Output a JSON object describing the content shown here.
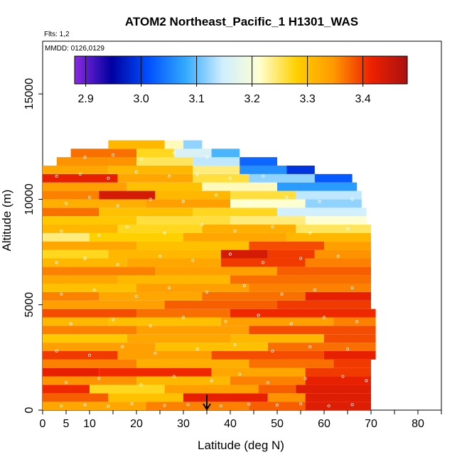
{
  "chart_data": {
    "type": "heatmap",
    "title": "ATOM2 Northeast_Pacific_1 H1301_WAS",
    "annotations": [
      "Flts: 1,2",
      "MMDD: 0126,0129"
    ],
    "xlabel": "Latitude (deg N)",
    "ylabel": "Altitude (m)",
    "xlim": [
      0,
      85
    ],
    "ylim": [
      0,
      17500
    ],
    "x_ticks": [
      0,
      5,
      10,
      20,
      30,
      40,
      50,
      60,
      70,
      80
    ],
    "x_minor_ticks": [
      15,
      25,
      35,
      45,
      55,
      65,
      75,
      85
    ],
    "y_ticks": [
      0,
      5000,
      10000,
      15000
    ],
    "colorbar": {
      "range": [
        2.88,
        3.48
      ],
      "ticks": [
        2.9,
        3.0,
        3.1,
        3.2,
        3.3,
        3.4
      ],
      "tick_labels": [
        "2.9",
        "3.0",
        "3.1",
        "3.2",
        "3.3",
        "3.4"
      ],
      "colors": [
        "#8a2be2",
        "#0000a0",
        "#0050ff",
        "#33aaff",
        "#cfeeff",
        "#ffffd0",
        "#ffd000",
        "#ff9900",
        "#ee2200",
        "#aa1010"
      ]
    },
    "marker": {
      "latitude": 35,
      "altitude": 0,
      "symbol": "down-arrow"
    },
    "profile_outline": [
      [
        0,
        0
      ],
      [
        0,
        2500
      ],
      [
        1,
        4000
      ],
      [
        1.5,
        6500
      ],
      [
        2,
        8500
      ],
      [
        2,
        10000
      ],
      [
        3,
        11500
      ],
      [
        6,
        12200
      ],
      [
        11,
        12700
      ],
      [
        22,
        12800
      ],
      [
        32,
        12300
      ],
      [
        42,
        11700
      ],
      [
        50,
        11500
      ],
      [
        58,
        11000
      ],
      [
        62,
        10600
      ],
      [
        66,
        10300
      ],
      [
        68,
        9800
      ],
      [
        69,
        9000
      ],
      [
        69.5,
        8000
      ],
      [
        70,
        7000
      ],
      [
        70.5,
        5500
      ],
      [
        71,
        4000
      ],
      [
        71,
        2500
      ],
      [
        70,
        1000
      ],
      [
        70,
        0
      ]
    ],
    "bands": [
      {
        "alt": [
          0,
          400
        ],
        "segments": [
          [
            0,
            22,
            3.33
          ],
          [
            22,
            44,
            3.36
          ],
          [
            44,
            56,
            3.38
          ],
          [
            56,
            70,
            3.43
          ]
        ]
      },
      {
        "alt": [
          400,
          800
        ],
        "segments": [
          [
            0,
            14,
            3.38
          ],
          [
            14,
            30,
            3.3
          ],
          [
            30,
            48,
            3.42
          ],
          [
            48,
            56,
            3.35
          ],
          [
            56,
            70,
            3.43
          ]
        ]
      },
      {
        "alt": [
          800,
          1200
        ],
        "segments": [
          [
            0,
            10,
            3.41
          ],
          [
            10,
            26,
            3.27
          ],
          [
            26,
            46,
            3.34
          ],
          [
            46,
            54,
            3.38
          ],
          [
            54,
            70,
            3.43
          ]
        ]
      },
      {
        "alt": [
          1200,
          1600
        ],
        "segments": [
          [
            0,
            20,
            3.35
          ],
          [
            20,
            40,
            3.31
          ],
          [
            40,
            56,
            3.36
          ],
          [
            56,
            70,
            3.42
          ]
        ]
      },
      {
        "alt": [
          1600,
          2000
        ],
        "segments": [
          [
            0,
            12,
            3.42
          ],
          [
            12,
            36,
            3.41
          ],
          [
            36,
            56,
            3.33
          ],
          [
            56,
            70,
            3.4
          ]
        ]
      },
      {
        "alt": [
          2000,
          2400
        ],
        "segments": [
          [
            0,
            20,
            3.36
          ],
          [
            20,
            44,
            3.32
          ],
          [
            44,
            62,
            3.37
          ],
          [
            62,
            70,
            3.4
          ]
        ]
      },
      {
        "alt": [
          2400,
          2800
        ],
        "segments": [
          [
            0,
            16,
            3.4
          ],
          [
            16,
            36,
            3.34
          ],
          [
            36,
            60,
            3.39
          ],
          [
            60,
            71,
            3.42
          ]
        ]
      },
      {
        "alt": [
          2800,
          3200
        ],
        "segments": [
          [
            0,
            24,
            3.34
          ],
          [
            24,
            48,
            3.3
          ],
          [
            48,
            71,
            3.37
          ]
        ]
      },
      {
        "alt": [
          3200,
          3600
        ],
        "segments": [
          [
            0,
            18,
            3.29
          ],
          [
            18,
            40,
            3.33
          ],
          [
            40,
            60,
            3.31
          ],
          [
            60,
            71,
            3.39
          ]
        ]
      },
      {
        "alt": [
          3600,
          4000
        ],
        "segments": [
          [
            0,
            20,
            3.36
          ],
          [
            20,
            44,
            3.34
          ],
          [
            44,
            71,
            3.39
          ]
        ]
      },
      {
        "alt": [
          4000,
          4400
        ],
        "segments": [
          [
            0,
            14,
            3.31
          ],
          [
            14,
            38,
            3.3
          ],
          [
            38,
            62,
            3.34
          ],
          [
            62,
            71,
            3.36
          ]
        ]
      },
      {
        "alt": [
          4400,
          4800
        ],
        "segments": [
          [
            0,
            20,
            3.39
          ],
          [
            20,
            40,
            3.37
          ],
          [
            40,
            71,
            3.41
          ]
        ]
      },
      {
        "alt": [
          4800,
          5200
        ],
        "segments": [
          [
            0,
            26,
            3.34
          ],
          [
            26,
            50,
            3.38
          ],
          [
            50,
            70,
            3.4
          ]
        ]
      },
      {
        "alt": [
          5200,
          5600
        ],
        "segments": [
          [
            0,
            12,
            3.36
          ],
          [
            12,
            34,
            3.33
          ],
          [
            34,
            56,
            3.37
          ],
          [
            56,
            70,
            3.42
          ]
        ]
      },
      {
        "alt": [
          5600,
          6000
        ],
        "segments": [
          [
            0,
            20,
            3.3
          ],
          [
            20,
            44,
            3.34
          ],
          [
            44,
            70,
            3.36
          ]
        ]
      },
      {
        "alt": [
          6000,
          6400
        ],
        "segments": [
          [
            0,
            16,
            3.33
          ],
          [
            16,
            40,
            3.31
          ],
          [
            40,
            70,
            3.37
          ]
        ]
      },
      {
        "alt": [
          6400,
          6800
        ],
        "segments": [
          [
            0,
            24,
            3.36
          ],
          [
            24,
            50,
            3.34
          ],
          [
            50,
            70,
            3.38
          ]
        ]
      },
      {
        "alt": [
          6800,
          7200
        ],
        "segments": [
          [
            0,
            18,
            3.31
          ],
          [
            18,
            38,
            3.33
          ],
          [
            38,
            56,
            3.4
          ],
          [
            56,
            70,
            3.36
          ]
        ]
      },
      {
        "alt": [
          7200,
          7600
        ],
        "segments": [
          [
            0,
            14,
            3.27
          ],
          [
            14,
            38,
            3.31
          ],
          [
            38,
            48,
            3.44
          ],
          [
            48,
            58,
            3.4
          ],
          [
            58,
            70,
            3.35
          ]
        ]
      },
      {
        "alt": [
          7600,
          8000
        ],
        "segments": [
          [
            0,
            20,
            3.33
          ],
          [
            20,
            44,
            3.3
          ],
          [
            44,
            60,
            3.39
          ],
          [
            60,
            70,
            3.34
          ]
        ]
      },
      {
        "alt": [
          8000,
          8400
        ],
        "segments": [
          [
            0,
            10,
            3.24
          ],
          [
            10,
            30,
            3.28
          ],
          [
            30,
            52,
            3.33
          ],
          [
            52,
            70,
            3.31
          ]
        ]
      },
      {
        "alt": [
          8400,
          8800
        ],
        "segments": [
          [
            0,
            16,
            3.31
          ],
          [
            16,
            34,
            3.27
          ],
          [
            34,
            54,
            3.32
          ],
          [
            54,
            70,
            3.25
          ]
        ]
      },
      {
        "alt": [
          8800,
          9200
        ],
        "segments": [
          [
            0,
            20,
            3.29
          ],
          [
            20,
            40,
            3.26
          ],
          [
            40,
            56,
            3.24
          ],
          [
            56,
            69,
            3.21
          ]
        ]
      },
      {
        "alt": [
          9200,
          9600
        ],
        "segments": [
          [
            0,
            12,
            3.37
          ],
          [
            12,
            32,
            3.3
          ],
          [
            32,
            50,
            3.27
          ],
          [
            50,
            69,
            3.15
          ]
        ]
      },
      {
        "alt": [
          9600,
          10000
        ],
        "segments": [
          [
            0,
            22,
            3.32
          ],
          [
            22,
            40,
            3.34
          ],
          [
            40,
            56,
            3.21
          ],
          [
            56,
            68,
            3.12
          ]
        ]
      },
      {
        "alt": [
          10000,
          10400
        ],
        "segments": [
          [
            0,
            12,
            3.36
          ],
          [
            12,
            24,
            3.44
          ],
          [
            24,
            40,
            3.31
          ],
          [
            40,
            54,
            3.26
          ],
          [
            54,
            68,
            3.14
          ]
        ]
      },
      {
        "alt": [
          10400,
          10800
        ],
        "segments": [
          [
            0,
            18,
            3.34
          ],
          [
            18,
            34,
            3.3
          ],
          [
            34,
            50,
            3.22
          ],
          [
            50,
            67,
            3.07
          ]
        ]
      },
      {
        "alt": [
          10800,
          11200
        ],
        "segments": [
          [
            0,
            16,
            3.42
          ],
          [
            16,
            32,
            3.33
          ],
          [
            32,
            44,
            3.26
          ],
          [
            44,
            58,
            3.12
          ],
          [
            58,
            66,
            3.02
          ]
        ]
      },
      {
        "alt": [
          11200,
          11600
        ],
        "segments": [
          [
            0,
            14,
            3.33
          ],
          [
            14,
            32,
            3.31
          ],
          [
            32,
            42,
            3.24
          ],
          [
            42,
            52,
            3.06
          ],
          [
            52,
            58,
            2.99
          ]
        ]
      },
      {
        "alt": [
          11600,
          12000
        ],
        "segments": [
          [
            3,
            20,
            3.35
          ],
          [
            20,
            32,
            3.25
          ],
          [
            32,
            42,
            3.14
          ],
          [
            42,
            50,
            3.03
          ]
        ]
      },
      {
        "alt": [
          12000,
          12400
        ],
        "segments": [
          [
            6,
            20,
            3.37
          ],
          [
            20,
            28,
            3.27
          ],
          [
            28,
            36,
            3.16
          ],
          [
            36,
            42,
            3.09
          ]
        ]
      },
      {
        "alt": [
          12400,
          12800
        ],
        "segments": [
          [
            14,
            26,
            3.31
          ],
          [
            26,
            30,
            3.22
          ],
          [
            30,
            34,
            3.12
          ]
        ]
      }
    ],
    "sample_points": [
      [
        4,
        200
      ],
      [
        9,
        250
      ],
      [
        14,
        180
      ],
      [
        19,
        300
      ],
      [
        26,
        220
      ],
      [
        31,
        260
      ],
      [
        38,
        200
      ],
      [
        44,
        280
      ],
      [
        50,
        240
      ],
      [
        55,
        300
      ],
      [
        61,
        200
      ],
      [
        66,
        260
      ],
      [
        5,
        1300
      ],
      [
        12,
        1500
      ],
      [
        21,
        1200
      ],
      [
        28,
        1600
      ],
      [
        36,
        1400
      ],
      [
        42,
        1700
      ],
      [
        48,
        1300
      ],
      [
        56,
        1500
      ],
      [
        64,
        1600
      ],
      [
        69,
        1400
      ],
      [
        3,
        2800
      ],
      [
        10,
        2600
      ],
      [
        17,
        3000
      ],
      [
        24,
        2700
      ],
      [
        33,
        2900
      ],
      [
        41,
        3100
      ],
      [
        49,
        2800
      ],
      [
        57,
        3000
      ],
      [
        65,
        2900
      ],
      [
        6,
        4100
      ],
      [
        15,
        4300
      ],
      [
        23,
        4000
      ],
      [
        30,
        4400
      ],
      [
        39,
        4200
      ],
      [
        46,
        4500
      ],
      [
        53,
        4100
      ],
      [
        60,
        4400
      ],
      [
        67,
        4200
      ],
      [
        4,
        5500
      ],
      [
        11,
        5700
      ],
      [
        20,
        5400
      ],
      [
        27,
        5800
      ],
      [
        35,
        5600
      ],
      [
        43,
        5900
      ],
      [
        51,
        5500
      ],
      [
        58,
        5700
      ],
      [
        66,
        5800
      ],
      [
        3,
        7000
      ],
      [
        9,
        7200
      ],
      [
        16,
        6900
      ],
      [
        25,
        7300
      ],
      [
        32,
        7100
      ],
      [
        40,
        7400
      ],
      [
        47,
        7000
      ],
      [
        55,
        7200
      ],
      [
        63,
        7300
      ],
      [
        4,
        8500
      ],
      [
        12,
        8300
      ],
      [
        18,
        8700
      ],
      [
        26,
        8400
      ],
      [
        34,
        8800
      ],
      [
        41,
        8500
      ],
      [
        49,
        8700
      ],
      [
        57,
        8400
      ],
      [
        65,
        8600
      ],
      [
        5,
        9800
      ],
      [
        10,
        10100
      ],
      [
        16,
        9700
      ],
      [
        23,
        10000
      ],
      [
        30,
        9900
      ],
      [
        37,
        10200
      ],
      [
        44,
        9800
      ],
      [
        52,
        10100
      ],
      [
        59,
        9900
      ],
      [
        66,
        10000
      ],
      [
        3,
        11100
      ],
      [
        8,
        11200
      ],
      [
        14,
        11000
      ],
      [
        20,
        11300
      ],
      [
        27,
        11100
      ],
      [
        33,
        11200
      ],
      [
        40,
        11000
      ],
      [
        47,
        11100
      ],
      [
        9,
        12000
      ],
      [
        15,
        12100
      ],
      [
        21,
        11900
      ],
      [
        28,
        12200
      ],
      [
        35,
        12000
      ]
    ]
  }
}
